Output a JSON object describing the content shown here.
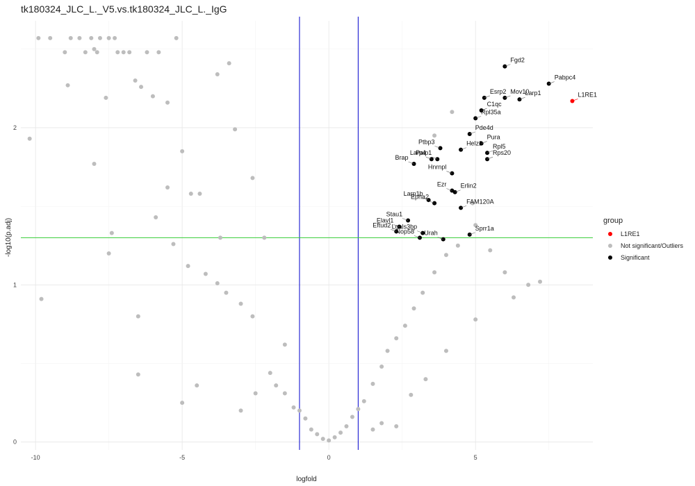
{
  "chart_data": {
    "type": "scatter",
    "title": "tk180324_JLC_L._V5.vs.tk180324_JLC_L._IgG",
    "xlabel": "logfold",
    "ylabel": "-log10(p.adj)",
    "xlim": [
      -10.5,
      9.0
    ],
    "ylim": [
      -0.05,
      2.68
    ],
    "x_ticks": [
      -10,
      -5,
      0,
      5
    ],
    "y_ticks": [
      0,
      1,
      2
    ],
    "grid": true,
    "thresholds": {
      "vertical": [
        -1,
        1
      ],
      "horizontal": 1.3,
      "vertical_color": "#0000cc",
      "horizontal_color": "#33cc33"
    },
    "legend": {
      "title": "group",
      "placement": "right",
      "entries": [
        {
          "name": "L1RE1",
          "color": "#ff0000"
        },
        {
          "name": "Not significant/Outliers",
          "color": "#bdbdbd"
        },
        {
          "name": "Significant",
          "color": "#000000"
        }
      ]
    },
    "series": [
      {
        "name": "L1RE1",
        "color": "#ff0000",
        "points": [
          {
            "x": 8.3,
            "y": 2.17,
            "label": "L1RE1"
          }
        ]
      },
      {
        "name": "Significant",
        "color": "#000000",
        "points": [
          {
            "x": 7.5,
            "y": 2.28,
            "label": "Pabpc4"
          },
          {
            "x": 6.0,
            "y": 2.39,
            "label": "Fgd2"
          },
          {
            "x": 6.0,
            "y": 2.19,
            "label": "Mov10"
          },
          {
            "x": 6.5,
            "y": 2.18,
            "label": "Larp1"
          },
          {
            "x": 5.3,
            "y": 2.19,
            "label": "Esrp2"
          },
          {
            "x": 5.2,
            "y": 2.11,
            "label": "C1qc"
          },
          {
            "x": 5.0,
            "y": 2.06,
            "label": "Rpl35a"
          },
          {
            "x": 4.8,
            "y": 1.96,
            "label": "Pde4d"
          },
          {
            "x": 5.2,
            "y": 1.9,
            "label": "Pura"
          },
          {
            "x": 3.8,
            "y": 1.87,
            "label": "Ptbp3"
          },
          {
            "x": 5.4,
            "y": 1.84,
            "label": "Rpl5"
          },
          {
            "x": 4.5,
            "y": 1.86,
            "label": "Helz2"
          },
          {
            "x": 3.5,
            "y": 1.8,
            "label": "Larp4"
          },
          {
            "x": 5.4,
            "y": 1.8,
            "label": "Rps20"
          },
          {
            "x": 3.7,
            "y": 1.8,
            "label": "Paip1"
          },
          {
            "x": 2.9,
            "y": 1.77,
            "label": "Brap"
          },
          {
            "x": 4.2,
            "y": 1.71,
            "label": "Hnrnpl"
          },
          {
            "x": 4.2,
            "y": 1.6,
            "label": "Ezr"
          },
          {
            "x": 4.3,
            "y": 1.59,
            "label": "Erlin2"
          },
          {
            "x": 3.4,
            "y": 1.54,
            "label": "Larp1b"
          },
          {
            "x": 3.6,
            "y": 1.52,
            "label": "Epha2"
          },
          {
            "x": 4.5,
            "y": 1.49,
            "label": "FAM120A"
          },
          {
            "x": 2.7,
            "y": 1.41,
            "label": "Stau1"
          },
          {
            "x": 2.4,
            "y": 1.37,
            "label": "Elavl1"
          },
          {
            "x": 2.3,
            "y": 1.34,
            "label": "Eftud2"
          },
          {
            "x": 3.2,
            "y": 1.33,
            "label": "Lgals3bp"
          },
          {
            "x": 3.1,
            "y": 1.3,
            "label": "Nop58"
          },
          {
            "x": 4.8,
            "y": 1.32,
            "label": "Sprr1a"
          },
          {
            "x": 3.9,
            "y": 1.29,
            "label": "Urah"
          }
        ]
      },
      {
        "name": "Not significant/Outliers",
        "color": "#bdbdbd",
        "points": [
          {
            "x": -10.2,
            "y": 1.93
          },
          {
            "x": -9.9,
            "y": 2.57
          },
          {
            "x": -9.8,
            "y": 0.91
          },
          {
            "x": -9.5,
            "y": 2.57
          },
          {
            "x": -9.0,
            "y": 2.48
          },
          {
            "x": -8.9,
            "y": 2.27
          },
          {
            "x": -8.8,
            "y": 2.57
          },
          {
            "x": -8.5,
            "y": 2.57
          },
          {
            "x": -8.3,
            "y": 2.48
          },
          {
            "x": -8.1,
            "y": 2.57
          },
          {
            "x": -8.0,
            "y": 2.5
          },
          {
            "x": -7.9,
            "y": 2.48
          },
          {
            "x": -7.8,
            "y": 2.57
          },
          {
            "x": -7.6,
            "y": 2.19
          },
          {
            "x": -7.5,
            "y": 2.57
          },
          {
            "x": -7.3,
            "y": 2.57
          },
          {
            "x": -7.2,
            "y": 2.48
          },
          {
            "x": -7.0,
            "y": 2.48
          },
          {
            "x": -6.8,
            "y": 2.48
          },
          {
            "x": -6.6,
            "y": 2.3
          },
          {
            "x": -6.4,
            "y": 2.26
          },
          {
            "x": -6.2,
            "y": 2.48
          },
          {
            "x": -6.0,
            "y": 2.2
          },
          {
            "x": -5.8,
            "y": 2.48
          },
          {
            "x": -5.5,
            "y": 2.16
          },
          {
            "x": -5.2,
            "y": 2.57
          },
          {
            "x": -5.0,
            "y": 1.85
          },
          {
            "x": -4.7,
            "y": 1.58
          },
          {
            "x": -4.4,
            "y": 1.58
          },
          {
            "x": -3.8,
            "y": 2.34
          },
          {
            "x": -3.4,
            "y": 2.41
          },
          {
            "x": -3.2,
            "y": 1.99
          },
          {
            "x": -2.6,
            "y": 1.68
          },
          {
            "x": -7.5,
            "y": 1.2
          },
          {
            "x": -8.0,
            "y": 1.77
          },
          {
            "x": -7.4,
            "y": 1.33
          },
          {
            "x": -6.5,
            "y": 0.8
          },
          {
            "x": -5.9,
            "y": 1.43
          },
          {
            "x": -5.5,
            "y": 1.62
          },
          {
            "x": -5.3,
            "y": 1.26
          },
          {
            "x": -4.8,
            "y": 1.12
          },
          {
            "x": -4.2,
            "y": 1.07
          },
          {
            "x": -3.8,
            "y": 1.01
          },
          {
            "x": -3.5,
            "y": 0.95
          },
          {
            "x": -3.0,
            "y": 0.88
          },
          {
            "x": -2.6,
            "y": 0.8
          },
          {
            "x": -6.5,
            "y": 0.43
          },
          {
            "x": -5.0,
            "y": 0.25
          },
          {
            "x": -4.5,
            "y": 0.36
          },
          {
            "x": -3.0,
            "y": 0.2
          },
          {
            "x": -2.5,
            "y": 0.31
          },
          {
            "x": -2.0,
            "y": 0.44
          },
          {
            "x": -1.8,
            "y": 0.36
          },
          {
            "x": -1.5,
            "y": 0.31
          },
          {
            "x": -1.2,
            "y": 0.22
          },
          {
            "x": -1.0,
            "y": 0.2
          },
          {
            "x": -0.8,
            "y": 0.15
          },
          {
            "x": -0.6,
            "y": 0.08
          },
          {
            "x": -0.4,
            "y": 0.05
          },
          {
            "x": -0.2,
            "y": 0.02
          },
          {
            "x": 0.0,
            "y": 0.01
          },
          {
            "x": 0.2,
            "y": 0.03
          },
          {
            "x": 0.4,
            "y": 0.06
          },
          {
            "x": 0.6,
            "y": 0.1
          },
          {
            "x": 0.8,
            "y": 0.16
          },
          {
            "x": 1.0,
            "y": 0.21
          },
          {
            "x": 1.2,
            "y": 0.26
          },
          {
            "x": 1.5,
            "y": 0.37
          },
          {
            "x": 1.8,
            "y": 0.48
          },
          {
            "x": 2.0,
            "y": 0.58
          },
          {
            "x": 2.3,
            "y": 0.66
          },
          {
            "x": 2.6,
            "y": 0.74
          },
          {
            "x": 2.9,
            "y": 0.85
          },
          {
            "x": 3.2,
            "y": 0.95
          },
          {
            "x": 3.6,
            "y": 1.08
          },
          {
            "x": 4.0,
            "y": 1.19
          },
          {
            "x": 4.4,
            "y": 1.25
          },
          {
            "x": 5.0,
            "y": 1.38
          },
          {
            "x": 5.5,
            "y": 1.22
          },
          {
            "x": 6.0,
            "y": 1.08
          },
          {
            "x": 6.3,
            "y": 0.92
          },
          {
            "x": 6.8,
            "y": 1.0
          },
          {
            "x": 7.2,
            "y": 1.02
          },
          {
            "x": 4.2,
            "y": 2.1
          },
          {
            "x": 3.6,
            "y": 1.95
          },
          {
            "x": 4.9,
            "y": 1.52
          },
          {
            "x": 2.3,
            "y": 0.1
          },
          {
            "x": 1.8,
            "y": 0.12
          },
          {
            "x": 5.0,
            "y": 0.78
          },
          {
            "x": 4.0,
            "y": 0.58
          },
          {
            "x": 3.3,
            "y": 0.4
          },
          {
            "x": 2.8,
            "y": 0.3
          },
          {
            "x": 1.5,
            "y": 0.08
          },
          {
            "x": -2.2,
            "y": 1.3
          },
          {
            "x": -3.7,
            "y": 1.3
          },
          {
            "x": -1.5,
            "y": 0.62
          }
        ]
      }
    ]
  }
}
